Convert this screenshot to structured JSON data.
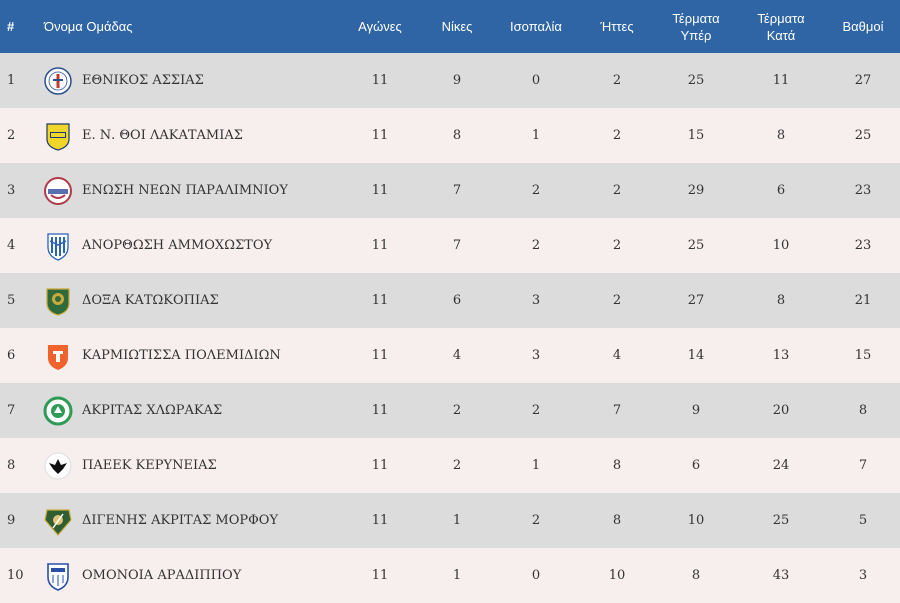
{
  "header": {
    "pos": "#",
    "team": "Όνομα Ομάδας",
    "played": "Αγώνες",
    "wins": "Νίκες",
    "draws": "Ισοπαλία",
    "losses": "Ήττες",
    "goals_for_1": "Τέρματα",
    "goals_for_2": "Υπέρ",
    "goals_against_1": "Τέρματα",
    "goals_against_2": "Κατά",
    "points": "Βαθμοί"
  },
  "colors": {
    "header_bg": "#2f65a5",
    "row_odd": "#dcdcdc",
    "row_even": "#f7eeee"
  },
  "rows": [
    {
      "pos": "1",
      "team": "ΕΘΝΙΚΟΣ ΑΣΣΙΑΣ",
      "logo": "ethnikos-assias-crest-icon",
      "played": "11",
      "wins": "9",
      "draws": "0",
      "losses": "2",
      "gf": "25",
      "ga": "11",
      "pts": "27"
    },
    {
      "pos": "2",
      "team": "Ε. Ν. ΘΟΙ ΛΑΚΑΤΑΜΙΑΣ",
      "logo": "thoi-lakatamias-crest-icon",
      "played": "11",
      "wins": "8",
      "draws": "1",
      "losses": "2",
      "gf": "15",
      "ga": "8",
      "pts": "25"
    },
    {
      "pos": "3",
      "team": "ΕΝΩΣΗ ΝΕΩΝ ΠΑΡΑΛΙΜΝΙΟΥ",
      "logo": "enosis-paralimniou-crest-icon",
      "played": "11",
      "wins": "7",
      "draws": "2",
      "losses": "2",
      "gf": "29",
      "ga": "6",
      "pts": "23"
    },
    {
      "pos": "4",
      "team": "ΑΝΟΡΘΩΣΗ ΑΜΜΟΧΩΣΤΟΥ",
      "logo": "anorthosis-crest-icon",
      "played": "11",
      "wins": "7",
      "draws": "2",
      "losses": "2",
      "gf": "25",
      "ga": "10",
      "pts": "23"
    },
    {
      "pos": "5",
      "team": "ΔΟΞΑ ΚΑΤΩΚΟΠΙΑΣ",
      "logo": "doxa-katokopias-crest-icon",
      "played": "11",
      "wins": "6",
      "draws": "3",
      "losses": "2",
      "gf": "27",
      "ga": "8",
      "pts": "21"
    },
    {
      "pos": "6",
      "team": "ΚΑΡΜΙΩΤΙΣΣΑ ΠΟΛΕΜΙΔΙΩΝ",
      "logo": "karmiotissa-crest-icon",
      "played": "11",
      "wins": "4",
      "draws": "3",
      "losses": "4",
      "gf": "14",
      "ga": "13",
      "pts": "15"
    },
    {
      "pos": "7",
      "team": "ΑΚΡΙΤΑΣ ΧΛΩΡΑΚΑΣ",
      "logo": "akritas-chlorakas-crest-icon",
      "played": "11",
      "wins": "2",
      "draws": "2",
      "losses": "7",
      "gf": "9",
      "ga": "20",
      "pts": "8"
    },
    {
      "pos": "8",
      "team": "ΠΑΕΕΚ ΚΕΡΥΝΕΙΑΣ",
      "logo": "paeek-crest-icon",
      "played": "11",
      "wins": "2",
      "draws": "1",
      "losses": "8",
      "gf": "6",
      "ga": "24",
      "pts": "7"
    },
    {
      "pos": "9",
      "team": "ΔΙΓΕΝΗΣ ΑΚΡΙΤΑΣ ΜΟΡΦΟΥ",
      "logo": "digenis-morfou-crest-icon",
      "played": "11",
      "wins": "1",
      "draws": "2",
      "losses": "8",
      "gf": "10",
      "ga": "25",
      "pts": "5"
    },
    {
      "pos": "10",
      "team": "ΟΜΟΝΟΙΑ ΑΡΑΔΙΠΠΟΥ",
      "logo": "omonia-aradippou-crest-icon",
      "played": "11",
      "wins": "1",
      "draws": "0",
      "losses": "10",
      "gf": "8",
      "ga": "43",
      "pts": "3"
    }
  ]
}
